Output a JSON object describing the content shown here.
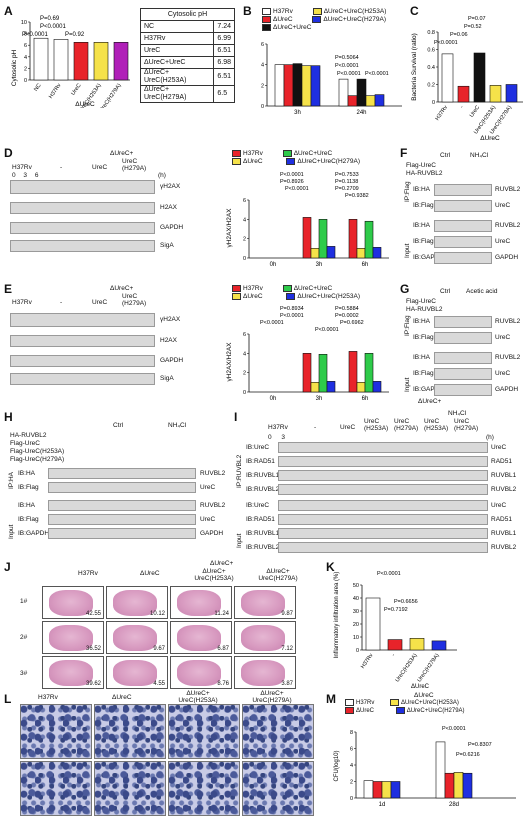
{
  "panels": {
    "A": {
      "label": "A",
      "ylabel": "Cytosolic pH",
      "group_label": "ΔUreC",
      "pvals": [
        "P=0.69",
        "P<0.0001",
        "P<0.0001",
        "P=0.92"
      ],
      "table_header": "Cytosolic pH",
      "table_rows": [
        {
          "name": "NC",
          "value": "7.24"
        },
        {
          "name": "H37Rv",
          "value": "6.99"
        },
        {
          "name": "UreC",
          "value": "6.51"
        },
        {
          "name": "ΔUreC+UreC",
          "value": "6.98"
        },
        {
          "name": "ΔUreC+ UreC(H253A)",
          "value": "6.51"
        },
        {
          "name": "ΔUreC+ UreC(H279A)",
          "value": "6.5"
        }
      ]
    },
    "B": {
      "label": "B",
      "legend": [
        "H37Rv",
        "ΔUreC",
        "ΔUreC+UreC",
        "ΔUreC+UreC(H253A)",
        "ΔUreC+UreC(H279A)"
      ],
      "pvals": [
        "P=0.5064",
        "P<0.0001",
        "P<0.0001",
        "P<0.0001"
      ]
    },
    "C": {
      "label": "C",
      "ylabel": "Bacteria Survival (ratio)",
      "group_label": "ΔUreC",
      "pvals": [
        "P<0.0001",
        "P=0.06",
        "P=0.52",
        "P=0.07"
      ]
    },
    "D": {
      "label": "D",
      "header": "ΔUreC+",
      "strains": [
        "H37Rv",
        "-",
        "UreC",
        "UreC (H279A)"
      ],
      "times": "0 3 6",
      "unit": "(h)",
      "blots": [
        "γH2AX",
        "H2AX",
        "GAPDH",
        "SigA"
      ],
      "legend": [
        "H37Rv",
        "ΔUreC",
        "ΔUreC+UreC",
        "ΔUreC+UreC(H279A)"
      ],
      "pvals": [
        "P<0.0001",
        "P=0.8926",
        "P=0.7533",
        "P=0.1138",
        "P<0.0001",
        "P=0.2709",
        "P=0.9382"
      ],
      "ylabel": "γH2AX/H2AX"
    },
    "E": {
      "label": "E",
      "header": "ΔUreC+",
      "strains": [
        "H37Rv",
        "-",
        "UreC",
        "UreC (H279A)"
      ],
      "blots": [
        "γH2AX",
        "H2AX",
        "GAPDH",
        "SigA"
      ],
      "legend": [
        "H37Rv",
        "ΔUreC",
        "ΔUreC+UreC",
        "ΔUreC+UreC(H253A)"
      ],
      "pvals": [
        "P=0.8934",
        "P<0.0001",
        "P<0.0001",
        "P=0.5884",
        "P=0.0002",
        "P=0.6962",
        "P<0.0001"
      ],
      "ylabel": "γH2AX/H2AX"
    },
    "F": {
      "label": "F",
      "conditions": [
        "Ctrl",
        "NH₄Cl"
      ],
      "rows": [
        "Flag-UreC",
        "HA-RUVBL2"
      ],
      "ip": "IP:Flag",
      "input": "Input",
      "blots": [
        "IB:HA",
        "IB:Flag",
        "IB:HA",
        "IB:Flag",
        "IB:GAPDH"
      ],
      "targets": [
        "RUVBL2",
        "UreC",
        "RUVBL2",
        "UreC",
        "GAPDH"
      ]
    },
    "G": {
      "label": "G",
      "conditions": [
        "Ctrl",
        "Acetic acid"
      ],
      "rows": [
        "Flag-UreC",
        "HA-RUVBL2"
      ],
      "ip": "IP:Flag",
      "input": "Input",
      "blots": [
        "IB:HA",
        "IB:Flag",
        "IB:HA",
        "IB:Flag",
        "IB:GAPDH"
      ],
      "targets": [
        "RUVBL2",
        "UreC",
        "RUVBL2",
        "UreC",
        "GAPDH"
      ]
    },
    "H": {
      "label": "H",
      "conditions": [
        "Ctrl",
        "NH₄Cl"
      ],
      "rows": [
        "HA-RUVBL2",
        "Flag-UreC",
        "Flag-UreC(H253A)",
        "Flag-UreC(H279A)"
      ],
      "ip": "IP:HA",
      "input": "Input",
      "blots": [
        "IB:HA",
        "IB:Flag",
        "IB:HA",
        "IB:Flag",
        "IB:GAPDH"
      ],
      "targets": [
        "RUVBL2",
        "UreC",
        "RUVBL2",
        "UreC",
        "GAPDH"
      ]
    },
    "I": {
      "label": "I",
      "header": "ΔUreC+",
      "nh4": "NH₄Cl",
      "strains": [
        "H37Rv",
        "-",
        "UreC",
        "UreC (H253A)",
        "UreC (H279A)",
        "UreC (H253A)",
        "UreC (H279A)"
      ],
      "times": "0 3",
      "unit": "(h)",
      "ip": "IP:RUVBL2",
      "input": "Input",
      "blots": [
        "IB:UreC",
        "IB:RAD51",
        "IB:RUVBL1",
        "IB:RUVBL2",
        "IB:UreC",
        "IB:RAD51",
        "IB:RUVBL1",
        "IB:RUVBL2"
      ],
      "targets": [
        "UreC",
        "RAD51",
        "RUVBL1",
        "RUVBL2",
        "UreC",
        "RAD51",
        "RUVBL1",
        "RUVBL2"
      ]
    },
    "J": {
      "label": "J",
      "header_group": "ΔUreC+",
      "cols": [
        "H37Rv",
        "ΔUreC",
        "ΔUreC+ UreC(H253A)",
        "ΔUreC+ UreC(H279A)"
      ],
      "rows": [
        "1#",
        "2#",
        "3#"
      ],
      "values": [
        [
          "42.55",
          "10.12",
          "11.24",
          "9.87"
        ],
        [
          "36.52",
          "9.67",
          "6.87",
          "7.12"
        ],
        [
          "39.62",
          "4.55",
          "8.76",
          "3.87"
        ]
      ]
    },
    "K": {
      "label": "K",
      "ylabel": "Inflammatory infiltration area (%)",
      "group_label": "ΔUreC",
      "pvals": [
        "P<0.0001",
        "P=0.6656",
        "P=0.7192"
      ]
    },
    "L": {
      "label": "L",
      "cols": [
        "H37Rv",
        "ΔUreC",
        "ΔUreC+ UreC(H253A)",
        "ΔUreC+ UreC(H279A)"
      ]
    },
    "M": {
      "label": "M",
      "header": "ΔUreC",
      "legend": [
        "H37Rv",
        "ΔUreC",
        "ΔUreC+UreC(H253A)",
        "ΔUreC+UreC(H279A)"
      ],
      "pvals": [
        "P<0.0001",
        "P=0.6216",
        "P=0.8307"
      ],
      "ylabel": "CFU(log10)"
    }
  },
  "colors": {
    "white": "#ffffff",
    "red": "#e8232a",
    "black": "#111111",
    "yellow": "#f5e24a",
    "blue": "#1f2fe0",
    "green": "#2ecb4a",
    "purple": "#b020b8",
    "gray": "#bdbdbd"
  },
  "chart_data": [
    {
      "type": "bar",
      "panel": "A",
      "categories": [
        "NC",
        "H37Rv",
        "UreC",
        "UreC(H253A)",
        "UreC(H279A)"
      ],
      "values": [
        7.2,
        7.0,
        6.5,
        6.5,
        6.5
      ],
      "ylabel": "Cytosolic pH",
      "ylim": [
        0,
        10
      ]
    },
    {
      "type": "bar",
      "panel": "B",
      "categories": [
        "3h",
        "24h"
      ],
      "series": [
        {
          "name": "H37Rv",
          "values": [
            4.0,
            2.6
          ]
        },
        {
          "name": "ΔUreC",
          "values": [
            4.0,
            1.0
          ]
        },
        {
          "name": "ΔUreC+UreC",
          "values": [
            4.1,
            2.6
          ]
        },
        {
          "name": "ΔUreC+UreC(H253A)",
          "values": [
            3.9,
            1.0
          ]
        },
        {
          "name": "ΔUreC+UreC(H279A)",
          "values": [
            3.9,
            1.1
          ]
        }
      ],
      "ylabel": "CFU (×10⁶)",
      "ylim": [
        0,
        6
      ]
    },
    {
      "type": "bar",
      "panel": "C",
      "categories": [
        "H37Rv",
        "-",
        "UreC",
        "UreC(H253A)",
        "UreC(H279A)"
      ],
      "values": [
        0.55,
        0.18,
        0.56,
        0.19,
        0.2
      ],
      "ylabel": "Bacteria Survival (ratio)",
      "ylim": [
        0,
        0.8
      ]
    },
    {
      "type": "bar",
      "panel": "D",
      "categories": [
        "0h",
        "3h",
        "6h"
      ],
      "series": [
        {
          "name": "H37Rv",
          "values": [
            0,
            4.2,
            4.0
          ]
        },
        {
          "name": "ΔUreC",
          "values": [
            0,
            1.0,
            1.0
          ]
        },
        {
          "name": "ΔUreC+UreC",
          "values": [
            0,
            4.0,
            3.8
          ]
        },
        {
          "name": "ΔUreC+UreC(H279A)",
          "values": [
            0,
            1.2,
            1.1
          ]
        }
      ],
      "ylabel": "γH2AX/H2AX",
      "ylim": [
        0,
        6
      ]
    },
    {
      "type": "bar",
      "panel": "E",
      "categories": [
        "0h",
        "3h",
        "6h"
      ],
      "series": [
        {
          "name": "H37Rv",
          "values": [
            0,
            4.0,
            4.2
          ]
        },
        {
          "name": "ΔUreC",
          "values": [
            0,
            1.0,
            1.0
          ]
        },
        {
          "name": "ΔUreC+UreC",
          "values": [
            0,
            3.9,
            4.0
          ]
        },
        {
          "name": "ΔUreC+UreC(H253A)",
          "values": [
            0,
            1.1,
            1.1
          ]
        }
      ],
      "ylabel": "γH2AX/H2AX",
      "ylim": [
        0,
        6
      ]
    },
    {
      "type": "bar",
      "panel": "K",
      "categories": [
        "H37Rv",
        "-",
        "UreC(H253A)",
        "UreC(H279A)"
      ],
      "values": [
        40,
        8,
        9,
        7
      ],
      "ylabel": "Inflammatory infiltration area (%)",
      "ylim": [
        0,
        50
      ]
    },
    {
      "type": "bar",
      "panel": "M",
      "categories": [
        "1d",
        "28d"
      ],
      "series": [
        {
          "name": "H37Rv",
          "values": [
            2.1,
            6.8
          ]
        },
        {
          "name": "ΔUreC",
          "values": [
            2.0,
            3.0
          ]
        },
        {
          "name": "ΔUreC+UreC(H253A)",
          "values": [
            2.0,
            3.1
          ]
        },
        {
          "name": "ΔUreC+UreC(H279A)",
          "values": [
            2.0,
            3.0
          ]
        }
      ],
      "ylabel": "CFU(log10)",
      "ylim": [
        0,
        8
      ]
    }
  ]
}
